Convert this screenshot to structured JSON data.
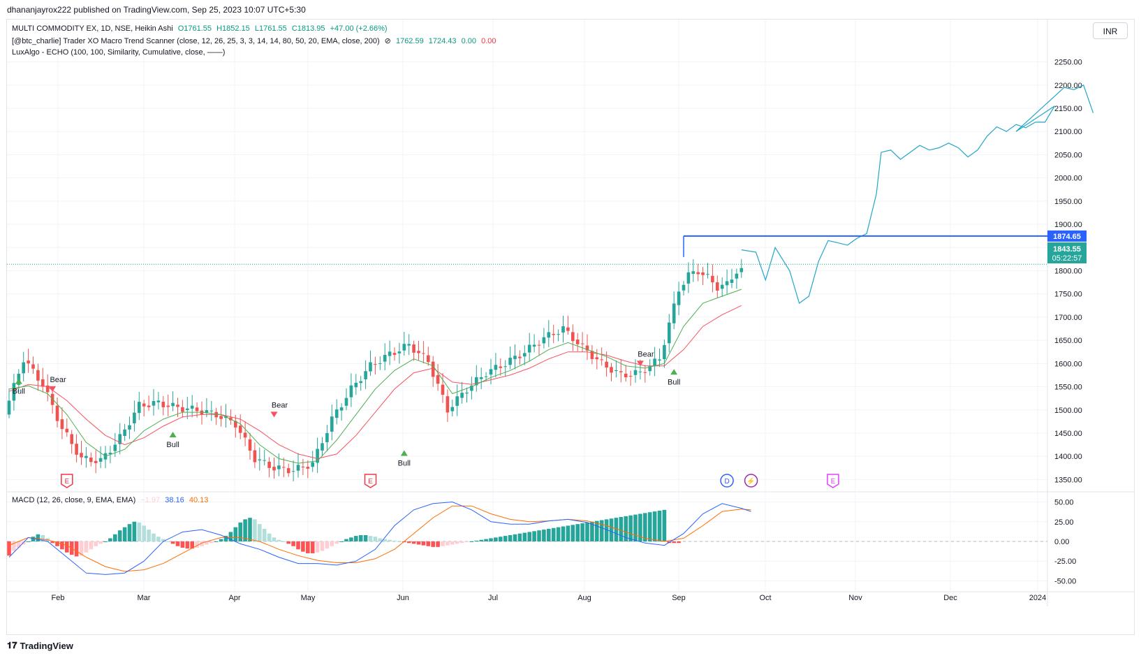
{
  "publisher_line": "dhananjayrox222 published on TradingView.com, Sep 25, 2023 10:07 UTC+5:30",
  "currency": "INR",
  "legend": {
    "symbol": "MULTI COMMODITY EX, 1D, NSE, Heikin Ashi",
    "open": "O1761.55",
    "high": "H1852.15",
    "low": "L1761.55",
    "close": "C1813.95",
    "change": "+47.00 (+2.66%)",
    "indicator1": "[@btc_charlie] Trader XO Macro Trend Scanner (close, 12, 26, 25, 3, 3, 14, 14, 80, 50, 20, EMA, close, 200)",
    "indicator1_icon": "⊘",
    "ind1_v1": "1762.59",
    "ind1_v2": "1724.43",
    "ind1_v3": "0.00",
    "ind1_v4": "0.00",
    "indicator2": "LuxAlgo - ECHO (100, 100, Similarity, Cumulative, close, ——)",
    "macd": "MACD (12, 26, close, 9, EMA, EMA)",
    "macd_hist": "−1.97",
    "macd_line": "38.16",
    "macd_signal": "40.13"
  },
  "price_tags": {
    "resistance": "1874.65",
    "last": "1843.55",
    "countdown": "05:22:57"
  },
  "signal_labels": {
    "bull": "Bull",
    "bear": "Bear"
  },
  "event_markers": {
    "earnings": "E",
    "dividend": "D",
    "split": "⚡"
  },
  "footer": "TradingView",
  "colors": {
    "up": "#26a69a",
    "down": "#ef5350",
    "echo": "#22a6c8",
    "ema_fast": "#4caf50",
    "ema_slow": "#f7525f",
    "resistance": "#2962ff",
    "macd": "#2962ff",
    "signal": "#ff6d00",
    "hist_up_strong": "#26a69a",
    "hist_up_weak": "#b2dfdb",
    "hist_dn_strong": "#ff5252",
    "hist_dn_weak": "#ffcdd2",
    "earnings": "#f23645",
    "dividend": "#2962ff",
    "split": "#9c27b0",
    "future_earnings": "#e040fb"
  },
  "chart_data": [
    {
      "type": "candlestick",
      "title": "MULTI COMMODITY EX, 1D, NSE, Heikin Ashi",
      "x_ticks": [
        "Feb",
        "Mar",
        "Apr",
        "May",
        "Jun",
        "Jul",
        "Aug",
        "Sep",
        "Oct",
        "Nov",
        "Dec",
        "2024"
      ],
      "y_ticks": [
        1350,
        1400,
        1450,
        1500,
        1550,
        1600,
        1650,
        1700,
        1750,
        1800,
        1850,
        1900,
        1950,
        2000,
        2050,
        2100,
        2150,
        2200,
        2250
      ],
      "ylim": [
        1325,
        2290
      ],
      "grid": true,
      "resistance_level": 1874.65,
      "last_price": 1843.55,
      "price_path": [
        [
          0,
          1490
        ],
        [
          4,
          1610
        ],
        [
          8,
          1555
        ],
        [
          12,
          1460
        ],
        [
          16,
          1395
        ],
        [
          20,
          1390
        ],
        [
          24,
          1440
        ],
        [
          28,
          1510
        ],
        [
          32,
          1515
        ],
        [
          36,
          1505
        ],
        [
          40,
          1500
        ],
        [
          44,
          1490
        ],
        [
          48,
          1470
        ],
        [
          52,
          1395
        ],
        [
          56,
          1375
        ],
        [
          60,
          1370
        ],
        [
          64,
          1385
        ],
        [
          68,
          1480
        ],
        [
          72,
          1545
        ],
        [
          76,
          1595
        ],
        [
          80,
          1620
        ],
        [
          84,
          1640
        ],
        [
          88,
          1605
        ],
        [
          92,
          1500
        ],
        [
          96,
          1545
        ],
        [
          100,
          1580
        ],
        [
          104,
          1600
        ],
        [
          108,
          1625
        ],
        [
          112,
          1655
        ],
        [
          116,
          1675
        ],
        [
          120,
          1635
        ],
        [
          124,
          1600
        ],
        [
          128,
          1575
        ],
        [
          132,
          1580
        ],
        [
          136,
          1610
        ],
        [
          140,
          1760
        ],
        [
          142,
          1790
        ],
        [
          144,
          1800
        ],
        [
          146,
          1785
        ],
        [
          148,
          1765
        ],
        [
          150,
          1770
        ],
        [
          152,
          1800
        ]
      ],
      "ema_fast": [
        [
          0,
          1545
        ],
        [
          4,
          1552
        ],
        [
          8,
          1535
        ],
        [
          12,
          1490
        ],
        [
          16,
          1430
        ],
        [
          20,
          1400
        ],
        [
          24,
          1415
        ],
        [
          28,
          1455
        ],
        [
          32,
          1480
        ],
        [
          36,
          1495
        ],
        [
          40,
          1495
        ],
        [
          44,
          1490
        ],
        [
          48,
          1470
        ],
        [
          52,
          1425
        ],
        [
          56,
          1395
        ],
        [
          60,
          1385
        ],
        [
          64,
          1390
        ],
        [
          68,
          1435
        ],
        [
          72,
          1490
        ],
        [
          76,
          1545
        ],
        [
          80,
          1585
        ],
        [
          84,
          1610
        ],
        [
          88,
          1595
        ],
        [
          92,
          1535
        ],
        [
          96,
          1550
        ],
        [
          100,
          1570
        ],
        [
          104,
          1585
        ],
        [
          108,
          1605
        ],
        [
          112,
          1630
        ],
        [
          116,
          1645
        ],
        [
          120,
          1630
        ],
        [
          124,
          1615
        ],
        [
          128,
          1595
        ],
        [
          132,
          1590
        ],
        [
          136,
          1600
        ],
        [
          140,
          1680
        ],
        [
          144,
          1730
        ],
        [
          148,
          1745
        ],
        [
          152,
          1760
        ]
      ],
      "ema_slow": [
        [
          0,
          1540
        ],
        [
          4,
          1555
        ],
        [
          8,
          1550
        ],
        [
          12,
          1520
        ],
        [
          16,
          1480
        ],
        [
          20,
          1445
        ],
        [
          24,
          1425
        ],
        [
          28,
          1440
        ],
        [
          32,
          1465
        ],
        [
          36,
          1485
        ],
        [
          40,
          1490
        ],
        [
          44,
          1490
        ],
        [
          48,
          1480
        ],
        [
          52,
          1455
        ],
        [
          56,
          1425
        ],
        [
          60,
          1405
        ],
        [
          64,
          1395
        ],
        [
          68,
          1405
        ],
        [
          72,
          1445
        ],
        [
          76,
          1495
        ],
        [
          80,
          1545
        ],
        [
          84,
          1580
        ],
        [
          88,
          1590
        ],
        [
          92,
          1560
        ],
        [
          96,
          1555
        ],
        [
          100,
          1565
        ],
        [
          104,
          1575
        ],
        [
          108,
          1590
        ],
        [
          112,
          1610
        ],
        [
          116,
          1625
        ],
        [
          120,
          1625
        ],
        [
          124,
          1618
        ],
        [
          128,
          1605
        ],
        [
          132,
          1595
        ],
        [
          136,
          1595
        ],
        [
          140,
          1630
        ],
        [
          144,
          1680
        ],
        [
          148,
          1705
        ],
        [
          152,
          1725
        ]
      ],
      "echo_projection": [
        [
          152,
          1845
        ],
        [
          155,
          1840
        ],
        [
          157,
          1780
        ],
        [
          159,
          1850
        ],
        [
          162,
          1800
        ],
        [
          164,
          1730
        ],
        [
          166,
          1745
        ],
        [
          168,
          1820
        ],
        [
          170,
          1865
        ],
        [
          172,
          1860
        ],
        [
          174,
          1855
        ],
        [
          176,
          1870
        ],
        [
          178,
          1880
        ],
        [
          180,
          1965
        ],
        [
          181,
          2055
        ],
        [
          183,
          2060
        ],
        [
          185,
          2040
        ],
        [
          187,
          2055
        ],
        [
          189,
          2070
        ],
        [
          191,
          2060
        ],
        [
          193,
          2065
        ],
        [
          195,
          2075
        ],
        [
          197,
          2065
        ],
        [
          199,
          2045
        ],
        [
          201,
          2060
        ],
        [
          203,
          2090
        ],
        [
          205,
          2110
        ],
        [
          207,
          2100
        ],
        [
          209,
          2115
        ],
        [
          211,
          2108
        ],
        [
          213,
          2120
        ],
        [
          215,
          2120
        ],
        [
          217,
          2155
        ],
        [
          209,
          2100
        ],
        [
          219,
          2195
        ],
        [
          221,
          2190
        ],
        [
          223,
          2200
        ],
        [
          225,
          2140
        ]
      ],
      "signals": [
        {
          "type": "Bull",
          "bar": 2,
          "price": 1565
        },
        {
          "type": "Bear",
          "bar": 9,
          "price": 1545
        },
        {
          "type": "Bull",
          "bar": 34,
          "price": 1450
        },
        {
          "type": "Bear",
          "bar": 55,
          "price": 1490
        },
        {
          "type": "Bull",
          "bar": 82,
          "price": 1410
        },
        {
          "type": "Bear",
          "bar": 131,
          "price": 1600
        },
        {
          "type": "Bull",
          "bar": 138,
          "price": 1585
        }
      ],
      "events": [
        {
          "type": "E",
          "bar": 12
        },
        {
          "type": "E",
          "bar": 75
        },
        {
          "type": "D",
          "bar": 149
        },
        {
          "type": "⚡",
          "bar": 154
        },
        {
          "type": "E",
          "bar": 171
        }
      ]
    },
    {
      "type": "bar",
      "title": "MACD (12, 26, close, 9, EMA, EMA)",
      "y_ticks": [
        -50,
        -25,
        0,
        25,
        50
      ],
      "ylim": [
        -62,
        62
      ],
      "series": [
        {
          "name": "MACD",
          "points": [
            [
              0,
              -20
            ],
            [
              4,
              5
            ],
            [
              8,
              0
            ],
            [
              12,
              -20
            ],
            [
              16,
              -40
            ],
            [
              20,
              -42
            ],
            [
              24,
              -40
            ],
            [
              28,
              -25
            ],
            [
              32,
              0
            ],
            [
              36,
              12
            ],
            [
              40,
              15
            ],
            [
              44,
              8
            ],
            [
              48,
              -3
            ],
            [
              52,
              -10
            ],
            [
              56,
              -20
            ],
            [
              60,
              -28
            ],
            [
              64,
              -28
            ],
            [
              68,
              -30
            ],
            [
              72,
              -25
            ],
            [
              76,
              -10
            ],
            [
              80,
              20
            ],
            [
              84,
              40
            ],
            [
              88,
              48
            ],
            [
              92,
              50
            ],
            [
              96,
              40
            ],
            [
              100,
              25
            ],
            [
              104,
              22
            ],
            [
              108,
              22
            ],
            [
              112,
              26
            ],
            [
              116,
              28
            ],
            [
              120,
              24
            ],
            [
              124,
              15
            ],
            [
              128,
              5
            ],
            [
              132,
              -2
            ],
            [
              136,
              -5
            ],
            [
              140,
              10
            ],
            [
              144,
              35
            ],
            [
              148,
              48
            ],
            [
              152,
              42
            ],
            [
              154,
              38
            ]
          ]
        },
        {
          "name": "Signal",
          "points": [
            [
              0,
              -5
            ],
            [
              4,
              5
            ],
            [
              8,
              2
            ],
            [
              12,
              -5
            ],
            [
              16,
              -20
            ],
            [
              20,
              -32
            ],
            [
              24,
              -38
            ],
            [
              28,
              -36
            ],
            [
              32,
              -28
            ],
            [
              36,
              -15
            ],
            [
              40,
              -2
            ],
            [
              44,
              5
            ],
            [
              48,
              5
            ],
            [
              52,
              0
            ],
            [
              56,
              -10
            ],
            [
              60,
              -18
            ],
            [
              64,
              -24
            ],
            [
              68,
              -27
            ],
            [
              72,
              -27
            ],
            [
              76,
              -22
            ],
            [
              80,
              -10
            ],
            [
              84,
              10
            ],
            [
              88,
              30
            ],
            [
              92,
              45
            ],
            [
              96,
              45
            ],
            [
              100,
              35
            ],
            [
              104,
              28
            ],
            [
              108,
              25
            ],
            [
              112,
              26
            ],
            [
              116,
              28
            ],
            [
              120,
              26
            ],
            [
              124,
              20
            ],
            [
              128,
              12
            ],
            [
              132,
              4
            ],
            [
              136,
              0
            ],
            [
              140,
              4
            ],
            [
              144,
              20
            ],
            [
              148,
              38
            ],
            [
              152,
              41
            ],
            [
              154,
              40
            ]
          ]
        },
        {
          "name": "Histogram",
          "values": [
            -18,
            -12,
            -8,
            -4,
            0,
            6,
            9,
            8,
            4,
            -2,
            -6,
            -10,
            -14,
            -17,
            -19,
            -18,
            -14,
            -10,
            -6,
            -3,
            0,
            4,
            9,
            14,
            18,
            22,
            25,
            24,
            20,
            15,
            10,
            6,
            3,
            0,
            -3,
            -6,
            -8,
            -9,
            -9,
            -8,
            -6,
            -4,
            -2,
            0,
            3,
            7,
            12,
            18,
            24,
            28,
            30,
            28,
            22,
            16,
            10,
            5,
            2,
            0,
            -3,
            -6,
            -10,
            -13,
            -15,
            -15,
            -14,
            -12,
            -9,
            -6,
            -3,
            0,
            3,
            5,
            7,
            8,
            8,
            7,
            6,
            4,
            3,
            2,
            1,
            0,
            -1,
            -2,
            -3,
            -4,
            -5,
            -6,
            -7,
            -7,
            -6,
            -5,
            -4,
            -3,
            -2,
            -1,
            0,
            1,
            2,
            3,
            4,
            5,
            6,
            7,
            8,
            9,
            10,
            11,
            12,
            13,
            14,
            15,
            16,
            17,
            18,
            19,
            20,
            21,
            22,
            23,
            24,
            25,
            26,
            27,
            28,
            29,
            30,
            31,
            32,
            33,
            34,
            35,
            36,
            37,
            38,
            39,
            40,
            -2,
            -2,
            -2
          ]
        }
      ]
    }
  ]
}
